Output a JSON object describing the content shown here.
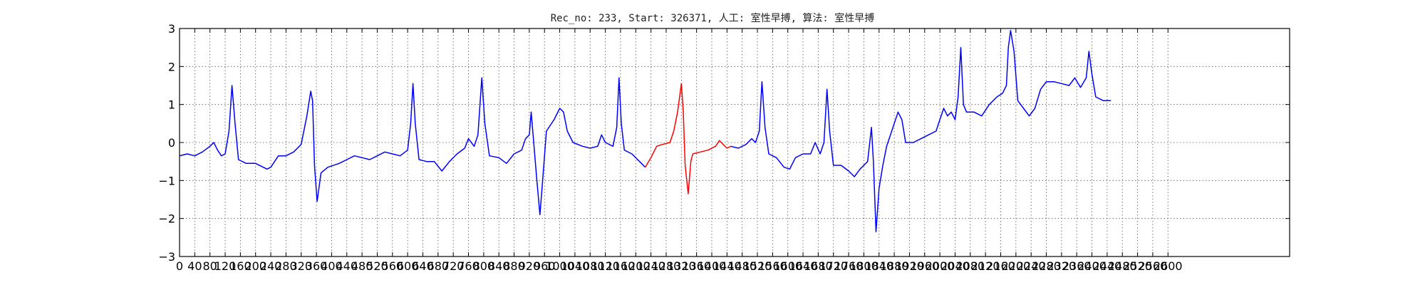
{
  "chart_data": {
    "type": "line",
    "title": "Rec_no: 233, Start: 326371, 人工: 室性早搏, 算法: 室性早搏",
    "xlabel": "",
    "ylabel": "",
    "xlim": [
      0,
      2920
    ],
    "ylim": [
      -3,
      3
    ],
    "grid": true,
    "y_ticks": [
      -3,
      -2,
      -1,
      0,
      1,
      2,
      3
    ],
    "y_tick_labels": [
      "−3",
      "−2",
      "−1",
      "0",
      "1",
      "2",
      "3"
    ],
    "x_ticks": [
      0,
      40,
      80,
      120,
      160,
      200,
      240,
      280,
      320,
      360,
      400,
      440,
      480,
      520,
      560,
      600,
      640,
      680,
      720,
      760,
      800,
      840,
      880,
      920,
      960,
      1000,
      1040,
      1080,
      1120,
      1160,
      1200,
      1240,
      1280,
      1320,
      1360,
      1400,
      1440,
      1480,
      1520,
      1560,
      1600,
      1640,
      1680,
      1720,
      1760,
      1800,
      1840,
      1880,
      1920,
      1960,
      2000,
      2040,
      2080,
      2120,
      2160,
      2200,
      2240,
      2280,
      2320,
      2360,
      2400,
      2440,
      2480,
      2520,
      2560,
      2600
    ],
    "x_tick_labels": [
      "0",
      "40",
      "80",
      "120",
      "160",
      "200",
      "240",
      "280",
      "320",
      "360",
      "400",
      "440",
      "480",
      "520",
      "560",
      "600",
      "640",
      "680",
      "720",
      "760",
      "800",
      "840",
      "880",
      "920",
      "960",
      "1000",
      "1040",
      "1080",
      "1120",
      "1160",
      "1200",
      "1240",
      "1280",
      "1320",
      "1360",
      "1400",
      "1440",
      "1480",
      "1520",
      "1560",
      "1600",
      "1640",
      "1680",
      "1720",
      "1760",
      "1800",
      "1840",
      "1880",
      "1920",
      "1960",
      "2000",
      "2040",
      "2080",
      "2120",
      "2160",
      "2200",
      "2240",
      "2280",
      "2320",
      "2360",
      "2400",
      "2440",
      "2480",
      "2520",
      "2560",
      "2600"
    ],
    "colors": {
      "normal": "#0000ff",
      "highlight": "#ff0000",
      "grid": "#555555"
    },
    "series": [
      {
        "name": "ecg-before",
        "color": "#0000ff",
        "points": [
          [
            0,
            -0.35
          ],
          [
            20,
            -0.3
          ],
          [
            40,
            -0.35
          ],
          [
            60,
            -0.25
          ],
          [
            80,
            -0.1
          ],
          [
            90,
            0.0
          ],
          [
            100,
            -0.2
          ],
          [
            110,
            -0.35
          ],
          [
            120,
            -0.3
          ],
          [
            130,
            0.3
          ],
          [
            138,
            1.5
          ],
          [
            146,
            0.5
          ],
          [
            155,
            -0.45
          ],
          [
            175,
            -0.55
          ],
          [
            200,
            -0.55
          ],
          [
            230,
            -0.7
          ],
          [
            240,
            -0.65
          ],
          [
            260,
            -0.35
          ],
          [
            280,
            -0.35
          ],
          [
            300,
            -0.25
          ],
          [
            320,
            -0.05
          ],
          [
            335,
            0.7
          ],
          [
            345,
            1.35
          ],
          [
            350,
            1.1
          ],
          [
            355,
            -0.6
          ],
          [
            362,
            -1.55
          ],
          [
            372,
            -0.8
          ],
          [
            390,
            -0.65
          ],
          [
            420,
            -0.55
          ],
          [
            440,
            -0.45
          ],
          [
            460,
            -0.35
          ],
          [
            480,
            -0.4
          ],
          [
            500,
            -0.45
          ],
          [
            520,
            -0.35
          ],
          [
            540,
            -0.25
          ],
          [
            560,
            -0.3
          ],
          [
            580,
            -0.35
          ],
          [
            600,
            -0.2
          ],
          [
            608,
            0.5
          ],
          [
            614,
            1.55
          ],
          [
            620,
            0.5
          ],
          [
            630,
            -0.45
          ],
          [
            650,
            -0.5
          ],
          [
            670,
            -0.5
          ],
          [
            690,
            -0.75
          ],
          [
            710,
            -0.5
          ],
          [
            730,
            -0.3
          ],
          [
            750,
            -0.15
          ],
          [
            760,
            0.1
          ],
          [
            775,
            -0.1
          ],
          [
            785,
            0.2
          ],
          [
            795,
            1.7
          ],
          [
            803,
            0.5
          ],
          [
            815,
            -0.35
          ],
          [
            840,
            -0.4
          ],
          [
            860,
            -0.55
          ],
          [
            880,
            -0.3
          ],
          [
            900,
            -0.2
          ],
          [
            910,
            0.1
          ],
          [
            920,
            0.2
          ],
          [
            925,
            0.8
          ],
          [
            930,
            0.2
          ],
          [
            940,
            -1.0
          ],
          [
            948,
            -1.9
          ],
          [
            955,
            -1.0
          ],
          [
            965,
            0.3
          ],
          [
            985,
            0.6
          ],
          [
            1000,
            0.9
          ],
          [
            1010,
            0.8
          ],
          [
            1020,
            0.3
          ],
          [
            1035,
            0.0
          ],
          [
            1060,
            -0.1
          ],
          [
            1080,
            -0.15
          ],
          [
            1100,
            -0.1
          ],
          [
            1110,
            0.2
          ],
          [
            1120,
            0.0
          ],
          [
            1140,
            -0.1
          ],
          [
            1150,
            0.4
          ],
          [
            1156,
            1.7
          ],
          [
            1162,
            0.5
          ],
          [
            1170,
            -0.2
          ],
          [
            1190,
            -0.3
          ],
          [
            1210,
            -0.5
          ],
          [
            1225,
            -0.65
          ]
        ]
      },
      {
        "name": "ecg-highlight",
        "color": "#ff0000",
        "points": [
          [
            1225,
            -0.65
          ],
          [
            1240,
            -0.4
          ],
          [
            1255,
            -0.1
          ],
          [
            1270,
            -0.05
          ],
          [
            1290,
            0.0
          ],
          [
            1300,
            0.3
          ],
          [
            1310,
            0.8
          ],
          [
            1320,
            1.55
          ],
          [
            1325,
            0.8
          ],
          [
            1330,
            -0.6
          ],
          [
            1338,
            -1.35
          ],
          [
            1345,
            -0.5
          ],
          [
            1350,
            -0.3
          ],
          [
            1370,
            -0.25
          ],
          [
            1390,
            -0.2
          ],
          [
            1410,
            -0.1
          ],
          [
            1420,
            0.05
          ],
          [
            1440,
            -0.15
          ],
          [
            1450,
            -0.1
          ]
        ]
      },
      {
        "name": "ecg-after",
        "color": "#0000ff",
        "points": [
          [
            1450,
            -0.1
          ],
          [
            1470,
            -0.15
          ],
          [
            1490,
            -0.05
          ],
          [
            1505,
            0.1
          ],
          [
            1515,
            0.0
          ],
          [
            1525,
            0.3
          ],
          [
            1532,
            1.6
          ],
          [
            1540,
            0.4
          ],
          [
            1550,
            -0.3
          ],
          [
            1570,
            -0.4
          ],
          [
            1590,
            -0.65
          ],
          [
            1605,
            -0.7
          ],
          [
            1620,
            -0.4
          ],
          [
            1640,
            -0.3
          ],
          [
            1660,
            -0.3
          ],
          [
            1672,
            0.0
          ],
          [
            1685,
            -0.3
          ],
          [
            1695,
            0.0
          ],
          [
            1703,
            1.4
          ],
          [
            1710,
            0.3
          ],
          [
            1720,
            -0.6
          ],
          [
            1740,
            -0.6
          ],
          [
            1760,
            -0.75
          ],
          [
            1775,
            -0.9
          ],
          [
            1790,
            -0.7
          ],
          [
            1800,
            -0.6
          ],
          [
            1810,
            -0.5
          ],
          [
            1820,
            0.4
          ],
          [
            1825,
            -0.5
          ],
          [
            1832,
            -2.35
          ],
          [
            1840,
            -1.2
          ],
          [
            1850,
            -0.6
          ],
          [
            1860,
            -0.1
          ],
          [
            1870,
            0.2
          ],
          [
            1880,
            0.5
          ],
          [
            1890,
            0.8
          ],
          [
            1900,
            0.6
          ],
          [
            1910,
            0.0
          ],
          [
            1930,
            0.0
          ],
          [
            1950,
            0.1
          ],
          [
            1970,
            0.2
          ],
          [
            1990,
            0.3
          ],
          [
            2000,
            0.6
          ],
          [
            2010,
            0.9
          ],
          [
            2020,
            0.7
          ],
          [
            2030,
            0.8
          ],
          [
            2040,
            0.6
          ],
          [
            2048,
            1.2
          ],
          [
            2055,
            2.5
          ],
          [
            2062,
            1.0
          ],
          [
            2070,
            0.8
          ],
          [
            2090,
            0.8
          ],
          [
            2110,
            0.7
          ],
          [
            2130,
            1.0
          ],
          [
            2150,
            1.2
          ],
          [
            2165,
            1.3
          ],
          [
            2175,
            1.5
          ],
          [
            2180,
            2.5
          ],
          [
            2186,
            2.95
          ],
          [
            2195,
            2.4
          ],
          [
            2205,
            1.1
          ],
          [
            2220,
            0.9
          ],
          [
            2235,
            0.7
          ],
          [
            2250,
            0.9
          ],
          [
            2265,
            1.4
          ],
          [
            2280,
            1.6
          ],
          [
            2300,
            1.6
          ],
          [
            2320,
            1.55
          ],
          [
            2340,
            1.5
          ],
          [
            2355,
            1.7
          ],
          [
            2370,
            1.45
          ],
          [
            2385,
            1.7
          ],
          [
            2392,
            2.4
          ],
          [
            2400,
            1.8
          ],
          [
            2410,
            1.2
          ],
          [
            2430,
            1.1
          ],
          [
            2450,
            1.1
          ]
        ]
      }
    ]
  }
}
